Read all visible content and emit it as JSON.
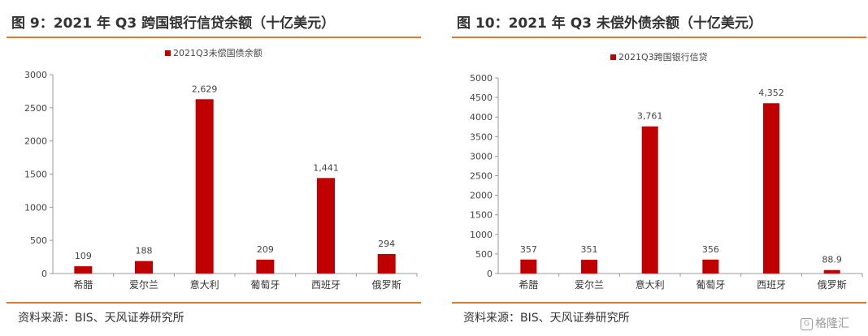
{
  "chart_data": [
    {
      "type": "bar",
      "figure_title": "图 9：2021 年 Q3 跨国银行信贷余额（十亿美元）",
      "legend": "2021Q3未偿国债余额",
      "categories": [
        "希腊",
        "爱尔兰",
        "意大利",
        "葡萄牙",
        "西班牙",
        "俄罗斯"
      ],
      "values": [
        109,
        188,
        2629,
        209,
        1441,
        294
      ],
      "value_labels": [
        "109",
        "188",
        "2,629",
        "209",
        "1,441",
        "294"
      ],
      "ylim": [
        0,
        3000
      ],
      "yticks": [
        "0",
        "500",
        "1000",
        "1500",
        "2000",
        "2500",
        "3000"
      ],
      "source": "资料来源：BIS、天风证券研究所",
      "color": "#c00000"
    },
    {
      "type": "bar",
      "figure_title": "图 10：2021 年 Q3 未偿外债余额（十亿美元）",
      "legend": "2021Q3跨国银行信贷",
      "categories": [
        "希腊",
        "爱尔兰",
        "意大利",
        "葡萄牙",
        "西班牙",
        "俄罗斯"
      ],
      "values": [
        357,
        351,
        3761,
        356,
        4352,
        88.9
      ],
      "value_labels": [
        "357",
        "351",
        "3,761",
        "356",
        "4,352",
        "88.9"
      ],
      "ylim": [
        0,
        5000
      ],
      "yticks": [
        "0",
        "500",
        "1000",
        "1500",
        "2000",
        "2500",
        "3000",
        "3500",
        "4000",
        "4500",
        "5000"
      ],
      "source": "资料来源：BIS、天风证券研究所",
      "color": "#c00000"
    }
  ],
  "watermark": {
    "icon": "G",
    "text": "格隆汇"
  }
}
